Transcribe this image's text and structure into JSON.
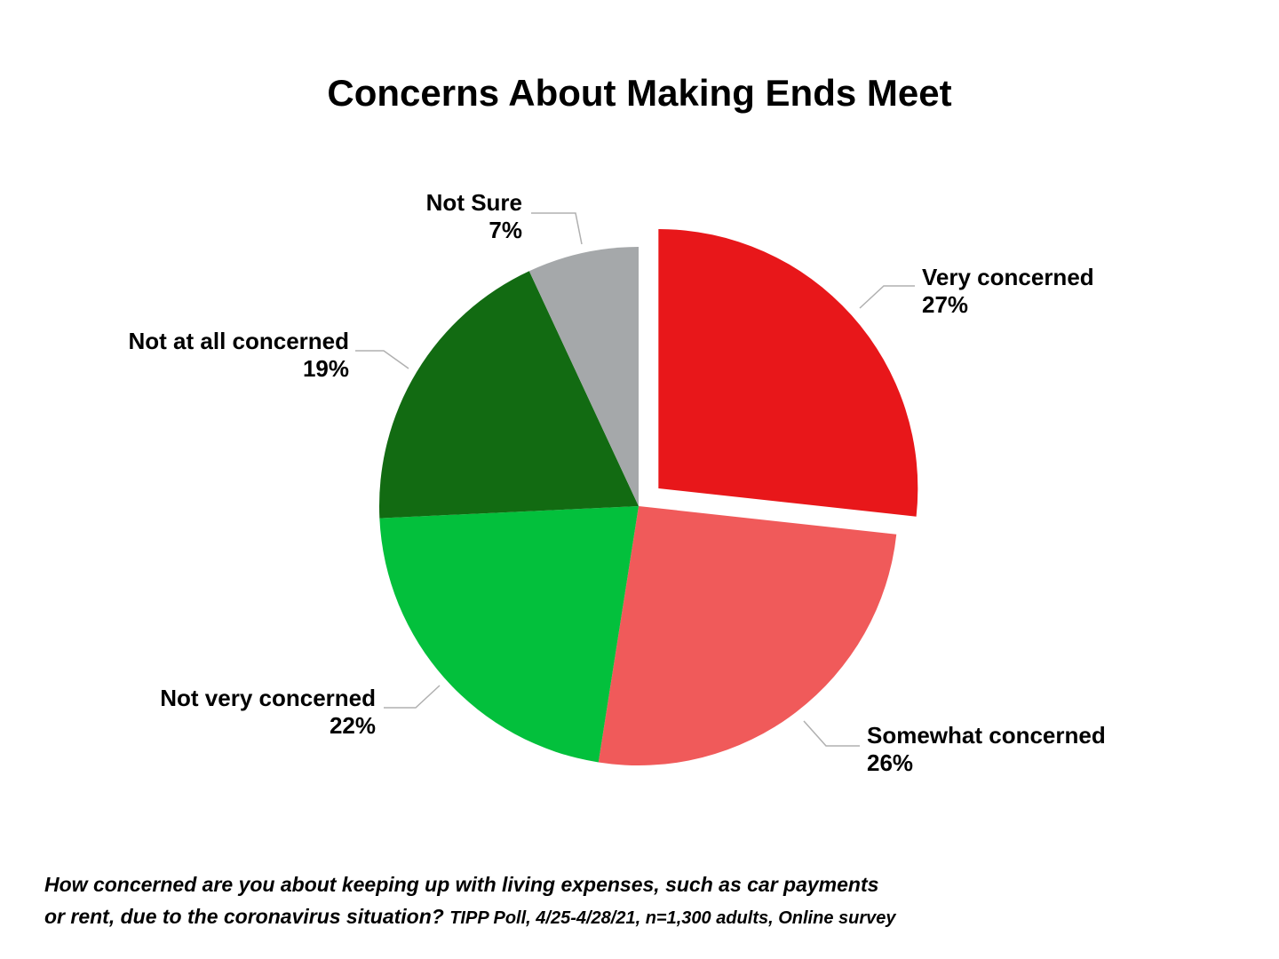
{
  "chart_data": {
    "type": "pie",
    "title": "Concerns About Making Ends Meet",
    "categories": [
      "Very concerned",
      "Somewhat concerned",
      "Not very concerned",
      "Not at all concerned",
      "Not Sure"
    ],
    "values": [
      27,
      26,
      22,
      19,
      7
    ],
    "value_labels": [
      "27%",
      "26%",
      "22%",
      "19%",
      "7%"
    ],
    "colors": [
      "#e8171a",
      "#f05a5a",
      "#03c03c",
      "#126b12",
      "#a5a8aa"
    ],
    "exploded": [
      "Very concerned"
    ],
    "footnote": {
      "lines": [
        "How concerned are you about keeping up with living expenses, such as car payments",
        "or rent, due to the coronavirus situation?"
      ],
      "source": "TIPP Poll, 4/25-4/28/21, n=1,300 adults, Online survey"
    }
  }
}
